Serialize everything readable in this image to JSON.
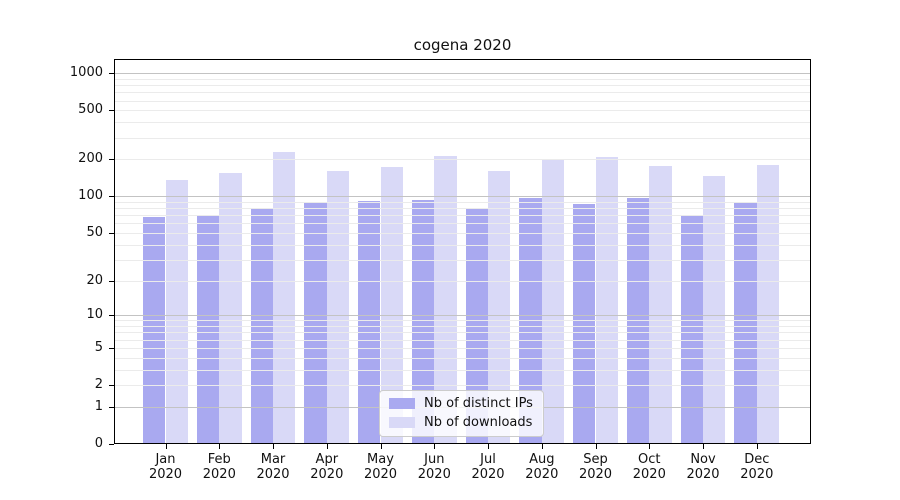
{
  "title": "cogena 2020",
  "colors": {
    "ips_bar": "#a9a9f0",
    "downloads_bar": "#d9d9f7",
    "grid_major": "#c3c3c3",
    "grid_minor": "#ebebeb",
    "axis": "#000000",
    "background": "#ffffff",
    "legend_border": "#cccccc"
  },
  "chart_data": {
    "type": "bar",
    "title": "cogena 2020",
    "categories": [
      {
        "month": "Jan",
        "year": "2020"
      },
      {
        "month": "Feb",
        "year": "2020"
      },
      {
        "month": "Mar",
        "year": "2020"
      },
      {
        "month": "Apr",
        "year": "2020"
      },
      {
        "month": "May",
        "year": "2020"
      },
      {
        "month": "Jun",
        "year": "2020"
      },
      {
        "month": "Jul",
        "year": "2020"
      },
      {
        "month": "Aug",
        "year": "2020"
      },
      {
        "month": "Sep",
        "year": "2020"
      },
      {
        "month": "Oct",
        "year": "2020"
      },
      {
        "month": "Nov",
        "year": "2020"
      },
      {
        "month": "Dec",
        "year": "2020"
      }
    ],
    "series": [
      {
        "name": "Nb of distinct IPs",
        "color_key": "ips_bar",
        "values": [
          68,
          69,
          80,
          88,
          91,
          94,
          78,
          96,
          86,
          97,
          70,
          90
        ]
      },
      {
        "name": "Nb of downloads",
        "color_key": "downloads_bar",
        "values": [
          137,
          156,
          230,
          162,
          172,
          214,
          160,
          201,
          208,
          176,
          145,
          180
        ]
      }
    ],
    "yscale": "log1p",
    "ylim": [
      0,
      1300
    ],
    "yticks": [
      0,
      1,
      2,
      5,
      10,
      20,
      50,
      100,
      200,
      500,
      1000
    ],
    "grid": true,
    "legend_position": "inside-bottom-center",
    "xlabel": "",
    "ylabel": ""
  }
}
